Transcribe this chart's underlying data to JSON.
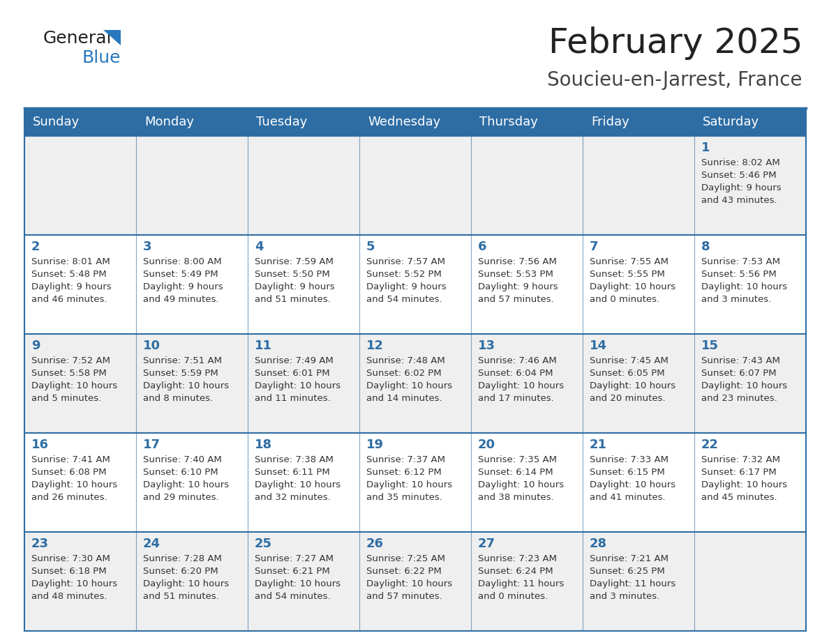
{
  "title": "February 2025",
  "subtitle": "Soucieu-en-Jarrest, France",
  "header_bg": "#2E6DA4",
  "header_text_color": "#FFFFFF",
  "cell_bg_light": "#EFEFEF",
  "cell_bg_white": "#FFFFFF",
  "day_number_color": "#2E6DA4",
  "text_color": "#333333",
  "line_color": "#2E6DA4",
  "days_of_week": [
    "Sunday",
    "Monday",
    "Tuesday",
    "Wednesday",
    "Thursday",
    "Friday",
    "Saturday"
  ],
  "weeks": [
    [
      {
        "day": "",
        "info": ""
      },
      {
        "day": "",
        "info": ""
      },
      {
        "day": "",
        "info": ""
      },
      {
        "day": "",
        "info": ""
      },
      {
        "day": "",
        "info": ""
      },
      {
        "day": "",
        "info": ""
      },
      {
        "day": "1",
        "info": "Sunrise: 8:02 AM\nSunset: 5:46 PM\nDaylight: 9 hours\nand 43 minutes."
      }
    ],
    [
      {
        "day": "2",
        "info": "Sunrise: 8:01 AM\nSunset: 5:48 PM\nDaylight: 9 hours\nand 46 minutes."
      },
      {
        "day": "3",
        "info": "Sunrise: 8:00 AM\nSunset: 5:49 PM\nDaylight: 9 hours\nand 49 minutes."
      },
      {
        "day": "4",
        "info": "Sunrise: 7:59 AM\nSunset: 5:50 PM\nDaylight: 9 hours\nand 51 minutes."
      },
      {
        "day": "5",
        "info": "Sunrise: 7:57 AM\nSunset: 5:52 PM\nDaylight: 9 hours\nand 54 minutes."
      },
      {
        "day": "6",
        "info": "Sunrise: 7:56 AM\nSunset: 5:53 PM\nDaylight: 9 hours\nand 57 minutes."
      },
      {
        "day": "7",
        "info": "Sunrise: 7:55 AM\nSunset: 5:55 PM\nDaylight: 10 hours\nand 0 minutes."
      },
      {
        "day": "8",
        "info": "Sunrise: 7:53 AM\nSunset: 5:56 PM\nDaylight: 10 hours\nand 3 minutes."
      }
    ],
    [
      {
        "day": "9",
        "info": "Sunrise: 7:52 AM\nSunset: 5:58 PM\nDaylight: 10 hours\nand 5 minutes."
      },
      {
        "day": "10",
        "info": "Sunrise: 7:51 AM\nSunset: 5:59 PM\nDaylight: 10 hours\nand 8 minutes."
      },
      {
        "day": "11",
        "info": "Sunrise: 7:49 AM\nSunset: 6:01 PM\nDaylight: 10 hours\nand 11 minutes."
      },
      {
        "day": "12",
        "info": "Sunrise: 7:48 AM\nSunset: 6:02 PM\nDaylight: 10 hours\nand 14 minutes."
      },
      {
        "day": "13",
        "info": "Sunrise: 7:46 AM\nSunset: 6:04 PM\nDaylight: 10 hours\nand 17 minutes."
      },
      {
        "day": "14",
        "info": "Sunrise: 7:45 AM\nSunset: 6:05 PM\nDaylight: 10 hours\nand 20 minutes."
      },
      {
        "day": "15",
        "info": "Sunrise: 7:43 AM\nSunset: 6:07 PM\nDaylight: 10 hours\nand 23 minutes."
      }
    ],
    [
      {
        "day": "16",
        "info": "Sunrise: 7:41 AM\nSunset: 6:08 PM\nDaylight: 10 hours\nand 26 minutes."
      },
      {
        "day": "17",
        "info": "Sunrise: 7:40 AM\nSunset: 6:10 PM\nDaylight: 10 hours\nand 29 minutes."
      },
      {
        "day": "18",
        "info": "Sunrise: 7:38 AM\nSunset: 6:11 PM\nDaylight: 10 hours\nand 32 minutes."
      },
      {
        "day": "19",
        "info": "Sunrise: 7:37 AM\nSunset: 6:12 PM\nDaylight: 10 hours\nand 35 minutes."
      },
      {
        "day": "20",
        "info": "Sunrise: 7:35 AM\nSunset: 6:14 PM\nDaylight: 10 hours\nand 38 minutes."
      },
      {
        "day": "21",
        "info": "Sunrise: 7:33 AM\nSunset: 6:15 PM\nDaylight: 10 hours\nand 41 minutes."
      },
      {
        "day": "22",
        "info": "Sunrise: 7:32 AM\nSunset: 6:17 PM\nDaylight: 10 hours\nand 45 minutes."
      }
    ],
    [
      {
        "day": "23",
        "info": "Sunrise: 7:30 AM\nSunset: 6:18 PM\nDaylight: 10 hours\nand 48 minutes."
      },
      {
        "day": "24",
        "info": "Sunrise: 7:28 AM\nSunset: 6:20 PM\nDaylight: 10 hours\nand 51 minutes."
      },
      {
        "day": "25",
        "info": "Sunrise: 7:27 AM\nSunset: 6:21 PM\nDaylight: 10 hours\nand 54 minutes."
      },
      {
        "day": "26",
        "info": "Sunrise: 7:25 AM\nSunset: 6:22 PM\nDaylight: 10 hours\nand 57 minutes."
      },
      {
        "day": "27",
        "info": "Sunrise: 7:23 AM\nSunset: 6:24 PM\nDaylight: 11 hours\nand 0 minutes."
      },
      {
        "day": "28",
        "info": "Sunrise: 7:21 AM\nSunset: 6:25 PM\nDaylight: 11 hours\nand 3 minutes."
      },
      {
        "day": "",
        "info": ""
      }
    ]
  ],
  "logo_general_color": "#222222",
  "logo_blue_color": "#2878BE",
  "logo_triangle_color": "#2878BE"
}
